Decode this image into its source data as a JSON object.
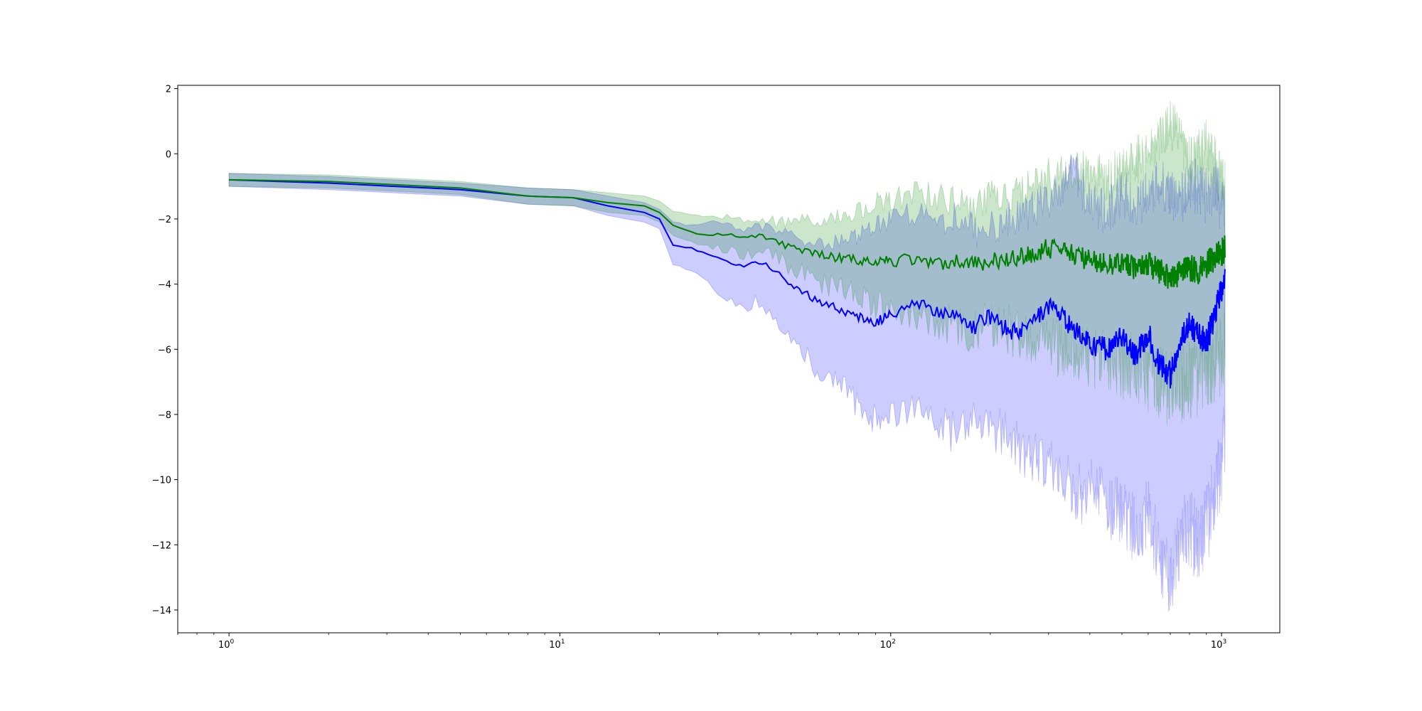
{
  "chart_data": {
    "type": "line",
    "title": "",
    "xlabel": "",
    "ylabel": "",
    "xscale": "log",
    "xlim": [
      0.7,
      1500
    ],
    "ylim": [
      -14.7,
      2.1
    ],
    "grid": false,
    "legend": "none",
    "x_ticks": [
      {
        "value": 1,
        "base": "10",
        "exp": "0"
      },
      {
        "value": 10,
        "base": "10",
        "exp": "1"
      },
      {
        "value": 100,
        "base": "10",
        "exp": "2"
      },
      {
        "value": 1000,
        "base": "10",
        "exp": "3"
      }
    ],
    "y_ticks": [
      {
        "value": 2,
        "label": "2"
      },
      {
        "value": 0,
        "label": "0"
      },
      {
        "value": -2,
        "label": "−2"
      },
      {
        "value": -4,
        "label": "−4"
      },
      {
        "value": -6,
        "label": "−6"
      },
      {
        "value": -8,
        "label": "−8"
      },
      {
        "value": -10,
        "label": "−10"
      },
      {
        "value": -12,
        "label": "−12"
      },
      {
        "value": -14,
        "label": "−14"
      }
    ],
    "series": [
      {
        "color": "#0000ff",
        "band_color": "#0000ff",
        "band_opacity": 0.2,
        "x": [
          1,
          2,
          5,
          8,
          11,
          14,
          18,
          20,
          22,
          25,
          28,
          32,
          36,
          40,
          45,
          50,
          60,
          70,
          80,
          90,
          100,
          120,
          140,
          160,
          180,
          200,
          230,
          260,
          300,
          330,
          360,
          400,
          450,
          500,
          550,
          600,
          650,
          700,
          750,
          800,
          850,
          900,
          950,
          1000,
          1024
        ],
        "mean": [
          -0.8,
          -0.9,
          -1.1,
          -1.3,
          -1.35,
          -1.6,
          -1.8,
          -2.0,
          -2.8,
          -2.9,
          -3.1,
          -3.3,
          -3.5,
          -3.3,
          -3.6,
          -4.0,
          -4.5,
          -4.8,
          -5.0,
          -5.2,
          -4.9,
          -4.6,
          -4.8,
          -5.1,
          -5.3,
          -5.0,
          -5.5,
          -5.4,
          -4.7,
          -5.0,
          -5.4,
          -5.8,
          -6.0,
          -5.6,
          -6.2,
          -5.5,
          -6.5,
          -6.8,
          -5.8,
          -5.2,
          -5.6,
          -5.8,
          -5.0,
          -4.2,
          -3.6
        ],
        "upper": [
          -0.6,
          -0.7,
          -0.9,
          -1.05,
          -1.1,
          -1.3,
          -1.5,
          -1.7,
          -2.1,
          -2.2,
          -2.1,
          -2.2,
          -2.3,
          -2.2,
          -2.4,
          -2.5,
          -2.7,
          -2.7,
          -2.5,
          -2.2,
          -2.0,
          -1.8,
          -2.2,
          -1.8,
          -2.4,
          -2.3,
          -2.0,
          -1.8,
          -1.4,
          -1.0,
          -0.5,
          -1.6,
          -1.8,
          -1.2,
          -1.5,
          -1.3,
          -0.9,
          -1.2,
          -1.5,
          -0.8,
          -1.1,
          -1.3,
          -1.0,
          -1.6,
          -1.8
        ],
        "lower": [
          -1.0,
          -1.1,
          -1.3,
          -1.55,
          -1.6,
          -1.9,
          -2.1,
          -2.3,
          -3.4,
          -3.6,
          -4.0,
          -4.4,
          -4.8,
          -4.5,
          -5.3,
          -5.6,
          -6.6,
          -7.1,
          -7.7,
          -8.2,
          -7.9,
          -8.0,
          -8.3,
          -8.6,
          -8.0,
          -8.4,
          -8.8,
          -9.2,
          -9.5,
          -9.8,
          -10.6,
          -10.2,
          -10.8,
          -11.0,
          -11.5,
          -11.0,
          -12.4,
          -13.0,
          -11.8,
          -11.5,
          -12.0,
          -11.4,
          -10.5,
          -9.5,
          -8.5
        ]
      },
      {
        "color": "#008000",
        "band_color": "#008000",
        "band_opacity": 0.2,
        "x": [
          1,
          2,
          5,
          8,
          11,
          14,
          18,
          20,
          22,
          25,
          28,
          32,
          36,
          40,
          45,
          50,
          60,
          70,
          80,
          90,
          100,
          120,
          140,
          160,
          180,
          200,
          230,
          260,
          300,
          330,
          360,
          400,
          450,
          500,
          550,
          600,
          650,
          700,
          750,
          800,
          850,
          900,
          950,
          1000,
          1024
        ],
        "mean": [
          -0.8,
          -0.85,
          -1.05,
          -1.3,
          -1.35,
          -1.5,
          -1.6,
          -1.8,
          -2.2,
          -2.4,
          -2.5,
          -2.45,
          -2.6,
          -2.5,
          -2.7,
          -2.9,
          -3.1,
          -3.2,
          -3.3,
          -3.25,
          -3.3,
          -3.2,
          -3.35,
          -3.3,
          -3.4,
          -3.3,
          -3.2,
          -3.1,
          -2.9,
          -2.9,
          -3.1,
          -3.3,
          -3.4,
          -3.4,
          -3.5,
          -3.4,
          -3.6,
          -3.8,
          -3.7,
          -3.5,
          -3.6,
          -3.4,
          -3.2,
          -3.0,
          -2.9
        ],
        "upper": [
          -0.6,
          -0.65,
          -0.85,
          -1.05,
          -1.1,
          -1.2,
          -1.3,
          -1.45,
          -1.75,
          -1.9,
          -1.95,
          -1.9,
          -2.0,
          -1.95,
          -2.1,
          -2.1,
          -2.0,
          -1.9,
          -1.8,
          -1.5,
          -1.4,
          -1.2,
          -1.3,
          -1.5,
          -1.6,
          -1.3,
          -1.2,
          -1.0,
          -0.7,
          -0.6,
          -0.5,
          -0.6,
          -0.8,
          -0.4,
          -0.2,
          0.0,
          0.6,
          1.0,
          0.3,
          -0.2,
          -0.1,
          0.2,
          -0.3,
          -0.8,
          -1.0
        ],
        "lower": [
          -1.0,
          -1.05,
          -1.25,
          -1.55,
          -1.6,
          -1.8,
          -1.9,
          -2.1,
          -2.5,
          -2.7,
          -2.9,
          -2.9,
          -3.1,
          -3.0,
          -3.2,
          -3.5,
          -3.9,
          -4.1,
          -4.4,
          -4.6,
          -4.8,
          -5.0,
          -5.1,
          -5.3,
          -5.5,
          -5.2,
          -5.4,
          -5.8,
          -5.9,
          -6.0,
          -6.1,
          -6.3,
          -6.4,
          -6.5,
          -6.6,
          -6.8,
          -7.0,
          -7.2,
          -7.1,
          -6.9,
          -6.8,
          -6.6,
          -6.5,
          -6.2,
          -6.0
        ]
      }
    ]
  }
}
